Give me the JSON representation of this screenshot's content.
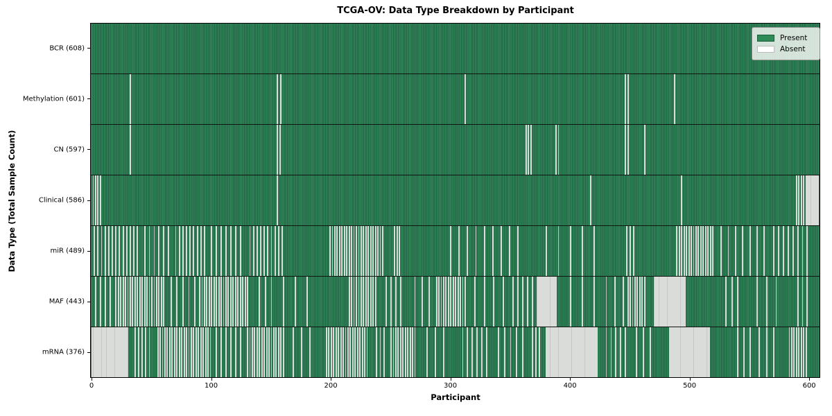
{
  "chart_data": {
    "type": "heatmap",
    "title": "TCGA-OV: Data Type Breakdown by Participant",
    "xlabel": "Participant",
    "ylabel": "Data Type (Total Sample Count)",
    "n_participants": 608,
    "x_ticks": [
      0,
      100,
      200,
      300,
      400,
      500,
      600
    ],
    "grid": false,
    "legend_position": "upper right",
    "legend": [
      {
        "label": "Present",
        "color": "#2e8b57"
      },
      {
        "label": "Absent",
        "color": "#ffffff"
      }
    ],
    "colors": {
      "present_fill": "#2e8b57",
      "present_edge": "#1f6041",
      "absent_fill": "#f1f1f1",
      "row_separator": "#101510",
      "frame": "#000000"
    },
    "absent_format": "[start,end,step] inclusive participant index ranges",
    "rows": [
      {
        "name": "BCR",
        "label": "BCR (608)",
        "present": 608,
        "absent": 0,
        "absent_ranges": []
      },
      {
        "name": "Methylation",
        "label": "Methylation (601)",
        "present": 601,
        "absent": 7,
        "absent_ranges": [
          [
            32,
            32,
            1
          ],
          [
            155,
            158,
            3
          ],
          [
            312,
            312,
            1
          ],
          [
            446,
            448,
            2
          ],
          [
            487,
            487,
            1
          ]
        ]
      },
      {
        "name": "CN",
        "label": "CN (597)",
        "present": 597,
        "absent": 11,
        "absent_ranges": [
          [
            32,
            32,
            1
          ],
          [
            155,
            157,
            2
          ],
          [
            363,
            367,
            2
          ],
          [
            388,
            390,
            2
          ],
          [
            446,
            448,
            2
          ],
          [
            462,
            462,
            1
          ]
        ]
      },
      {
        "name": "Clinical",
        "label": "Clinical (586)",
        "present": 586,
        "absent": 22,
        "absent_ranges": [
          [
            1,
            7,
            2
          ],
          [
            155,
            155,
            1
          ],
          [
            417,
            417,
            1
          ],
          [
            493,
            493,
            1
          ],
          [
            589,
            595,
            2
          ],
          [
            597,
            607,
            1
          ]
        ]
      },
      {
        "name": "miR",
        "label": "miR (489)",
        "present": 489,
        "absent": 119,
        "absent_ranges": [
          [
            2,
            38,
            3
          ],
          [
            44,
            64,
            4
          ],
          [
            70,
            96,
            3
          ],
          [
            100,
            126,
            4
          ],
          [
            132,
            160,
            3
          ],
          [
            199,
            243,
            2
          ],
          [
            253,
            258,
            2
          ],
          [
            300,
            356,
            7
          ],
          [
            380,
            420,
            10
          ],
          [
            447,
            453,
            3
          ],
          [
            489,
            519,
            2
          ],
          [
            526,
            562,
            6
          ],
          [
            570,
            600,
            4
          ]
        ]
      },
      {
        "name": "MAF",
        "label": "MAF (443)",
        "present": 443,
        "absent": 165,
        "absent_ranges": [
          [
            3,
            15,
            4
          ],
          [
            20,
            60,
            2
          ],
          [
            66,
            86,
            5
          ],
          [
            90,
            130,
            2
          ],
          [
            140,
            150,
            5
          ],
          [
            160,
            180,
            10
          ],
          [
            215,
            237,
            2
          ],
          [
            246,
            258,
            4
          ],
          [
            270,
            282,
            6
          ],
          [
            288,
            312,
            2
          ],
          [
            320,
            344,
            8
          ],
          [
            352,
            368,
            4
          ],
          [
            372,
            388,
            1
          ],
          [
            400,
            420,
            10
          ],
          [
            430,
            444,
            7
          ],
          [
            448,
            462,
            2
          ],
          [
            470,
            496,
            1
          ],
          [
            530,
            540,
            5
          ],
          [
            556,
            572,
            8
          ],
          [
            590,
            598,
            4
          ]
        ]
      },
      {
        "name": "mRNA",
        "label": "mRNA (376)",
        "present": 376,
        "absent": 232,
        "absent_ranges": [
          [
            0,
            30,
            1
          ],
          [
            36,
            48,
            3
          ],
          [
            55,
            99,
            2
          ],
          [
            104,
            124,
            4
          ],
          [
            130,
            160,
            2
          ],
          [
            168,
            188,
            7
          ],
          [
            196,
            230,
            2
          ],
          [
            238,
            244,
            3
          ],
          [
            250,
            270,
            2
          ],
          [
            280,
            300,
            7
          ],
          [
            310,
            330,
            4
          ],
          [
            340,
            360,
            5
          ],
          [
            368,
            374,
            3
          ],
          [
            380,
            422,
            1
          ],
          [
            430,
            446,
            4
          ],
          [
            455,
            467,
            6
          ],
          [
            483,
            516,
            1
          ],
          [
            540,
            550,
            5
          ],
          [
            558,
            570,
            6
          ],
          [
            583,
            597,
            2
          ]
        ]
      }
    ]
  }
}
